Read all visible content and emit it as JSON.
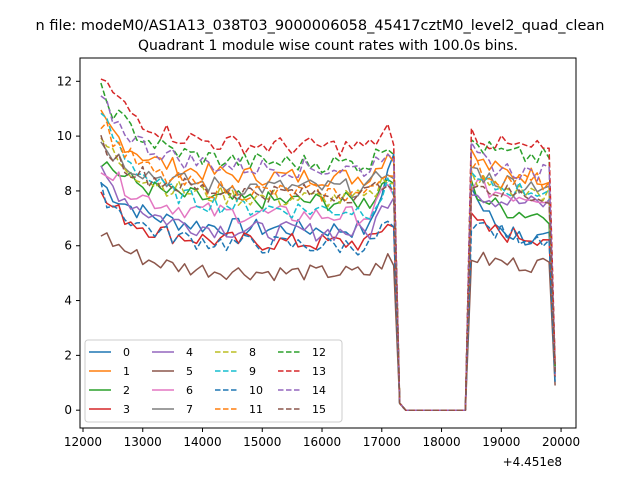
{
  "chart_data": {
    "type": "line",
    "suptitle": "n file: modeM0/AS1A13_038T03_9000006058_45417cztM0_level2_quad_clean",
    "title": "Quadrant 1 module wise count rates with 100.0s bins.",
    "xlabel": "",
    "ylabel": "",
    "x_offset_label": "+4.451e8",
    "xlim": [
      11950,
      20250
    ],
    "ylim": [
      -0.65,
      12.85
    ],
    "x_ticks": [
      12000,
      13000,
      14000,
      15000,
      16000,
      17000,
      18000,
      19000,
      20000
    ],
    "x_tick_labels": [
      "12000",
      "13000",
      "14000",
      "15000",
      "16000",
      "17000",
      "18000",
      "19000",
      "20000"
    ],
    "y_ticks": [
      0,
      2,
      4,
      6,
      8,
      10,
      12
    ],
    "y_tick_labels": [
      "0",
      "2",
      "4",
      "6",
      "8",
      "10",
      "12"
    ],
    "grid": false,
    "legend_position": "lower-left",
    "legend_columns": 4,
    "time_axis": {
      "start": 12300,
      "step": 100,
      "gap_start": 17300,
      "gap_end": 18400,
      "end": 19900
    },
    "series": [
      {
        "name": "0",
        "color": "#1f77b4",
        "dash": "solid",
        "level1": 6.6,
        "level2": 6.1,
        "start": 8.3,
        "peak": 10.6,
        "end": 1.4,
        "noise": 0.35
      },
      {
        "name": "1",
        "color": "#ff7f0e",
        "dash": "solid",
        "level1": 8.5,
        "level2": 8.5,
        "start": 10.7,
        "peak": 10.3,
        "end": 1.6,
        "noise": 0.35
      },
      {
        "name": "2",
        "color": "#2ca02c",
        "dash": "solid",
        "level1": 7.6,
        "level2": 7.1,
        "start": 9.2,
        "peak": 9.4,
        "end": 1.3,
        "noise": 0.35
      },
      {
        "name": "3",
        "color": "#d62728",
        "dash": "solid",
        "level1": 6.1,
        "level2": 6.3,
        "start": 7.8,
        "peak": 7.6,
        "end": 1.2,
        "noise": 0.35
      },
      {
        "name": "4",
        "color": "#9467bd",
        "dash": "solid",
        "level1": 6.5,
        "level2": 7.5,
        "start": 8.7,
        "peak": 8.8,
        "end": 1.3,
        "noise": 0.35
      },
      {
        "name": "5",
        "color": "#8c564b",
        "dash": "solid",
        "level1": 5.0,
        "level2": 5.3,
        "start": 6.5,
        "peak": 6.0,
        "end": 0.9,
        "noise": 0.3
      },
      {
        "name": "6",
        "color": "#e377c2",
        "dash": "solid",
        "level1": 7.1,
        "level2": 7.8,
        "start": 9.0,
        "peak": 8.9,
        "end": 1.3,
        "noise": 0.35
      },
      {
        "name": "7",
        "color": "#7f7f7f",
        "dash": "solid",
        "level1": 8.1,
        "level2": 8.2,
        "start": 9.8,
        "peak": 9.6,
        "end": 1.5,
        "noise": 0.35
      },
      {
        "name": "8",
        "color": "#bcbd22",
        "dash": "dashed",
        "level1": 7.7,
        "level2": 7.9,
        "start": 9.9,
        "peak": 9.4,
        "end": 1.4,
        "noise": 0.35
      },
      {
        "name": "9",
        "color": "#17becf",
        "dash": "dashed",
        "level1": 7.3,
        "level2": 8.0,
        "start": 10.9,
        "peak": 8.9,
        "end": 1.5,
        "noise": 0.35
      },
      {
        "name": "10",
        "color": "#1f77b4",
        "dash": "dashed",
        "level1": 6.0,
        "level2": 6.3,
        "start": 8.0,
        "peak": 7.6,
        "end": 1.0,
        "noise": 0.35
      },
      {
        "name": "11",
        "color": "#ff7f0e",
        "dash": "dashed",
        "level1": 7.9,
        "level2": 8.3,
        "start": 10.6,
        "peak": 9.7,
        "end": 1.5,
        "noise": 0.35
      },
      {
        "name": "12",
        "color": "#2ca02c",
        "dash": "dashed",
        "level1": 9.0,
        "level2": 9.2,
        "start": 11.6,
        "peak": 10.6,
        "end": 1.6,
        "noise": 0.35
      },
      {
        "name": "13",
        "color": "#d62728",
        "dash": "dashed",
        "level1": 9.6,
        "level2": 9.5,
        "start": 12.2,
        "peak": 11.0,
        "end": 1.7,
        "noise": 0.35
      },
      {
        "name": "14",
        "color": "#9467bd",
        "dash": "dashed",
        "level1": 8.8,
        "level2": 8.6,
        "start": 11.3,
        "peak": 10.4,
        "end": 1.5,
        "noise": 0.35
      },
      {
        "name": "15",
        "color": "#8c564b",
        "dash": "dashed",
        "level1": 7.9,
        "level2": 7.8,
        "start": 9.8,
        "peak": 9.1,
        "end": 1.4,
        "noise": 0.35
      }
    ]
  }
}
